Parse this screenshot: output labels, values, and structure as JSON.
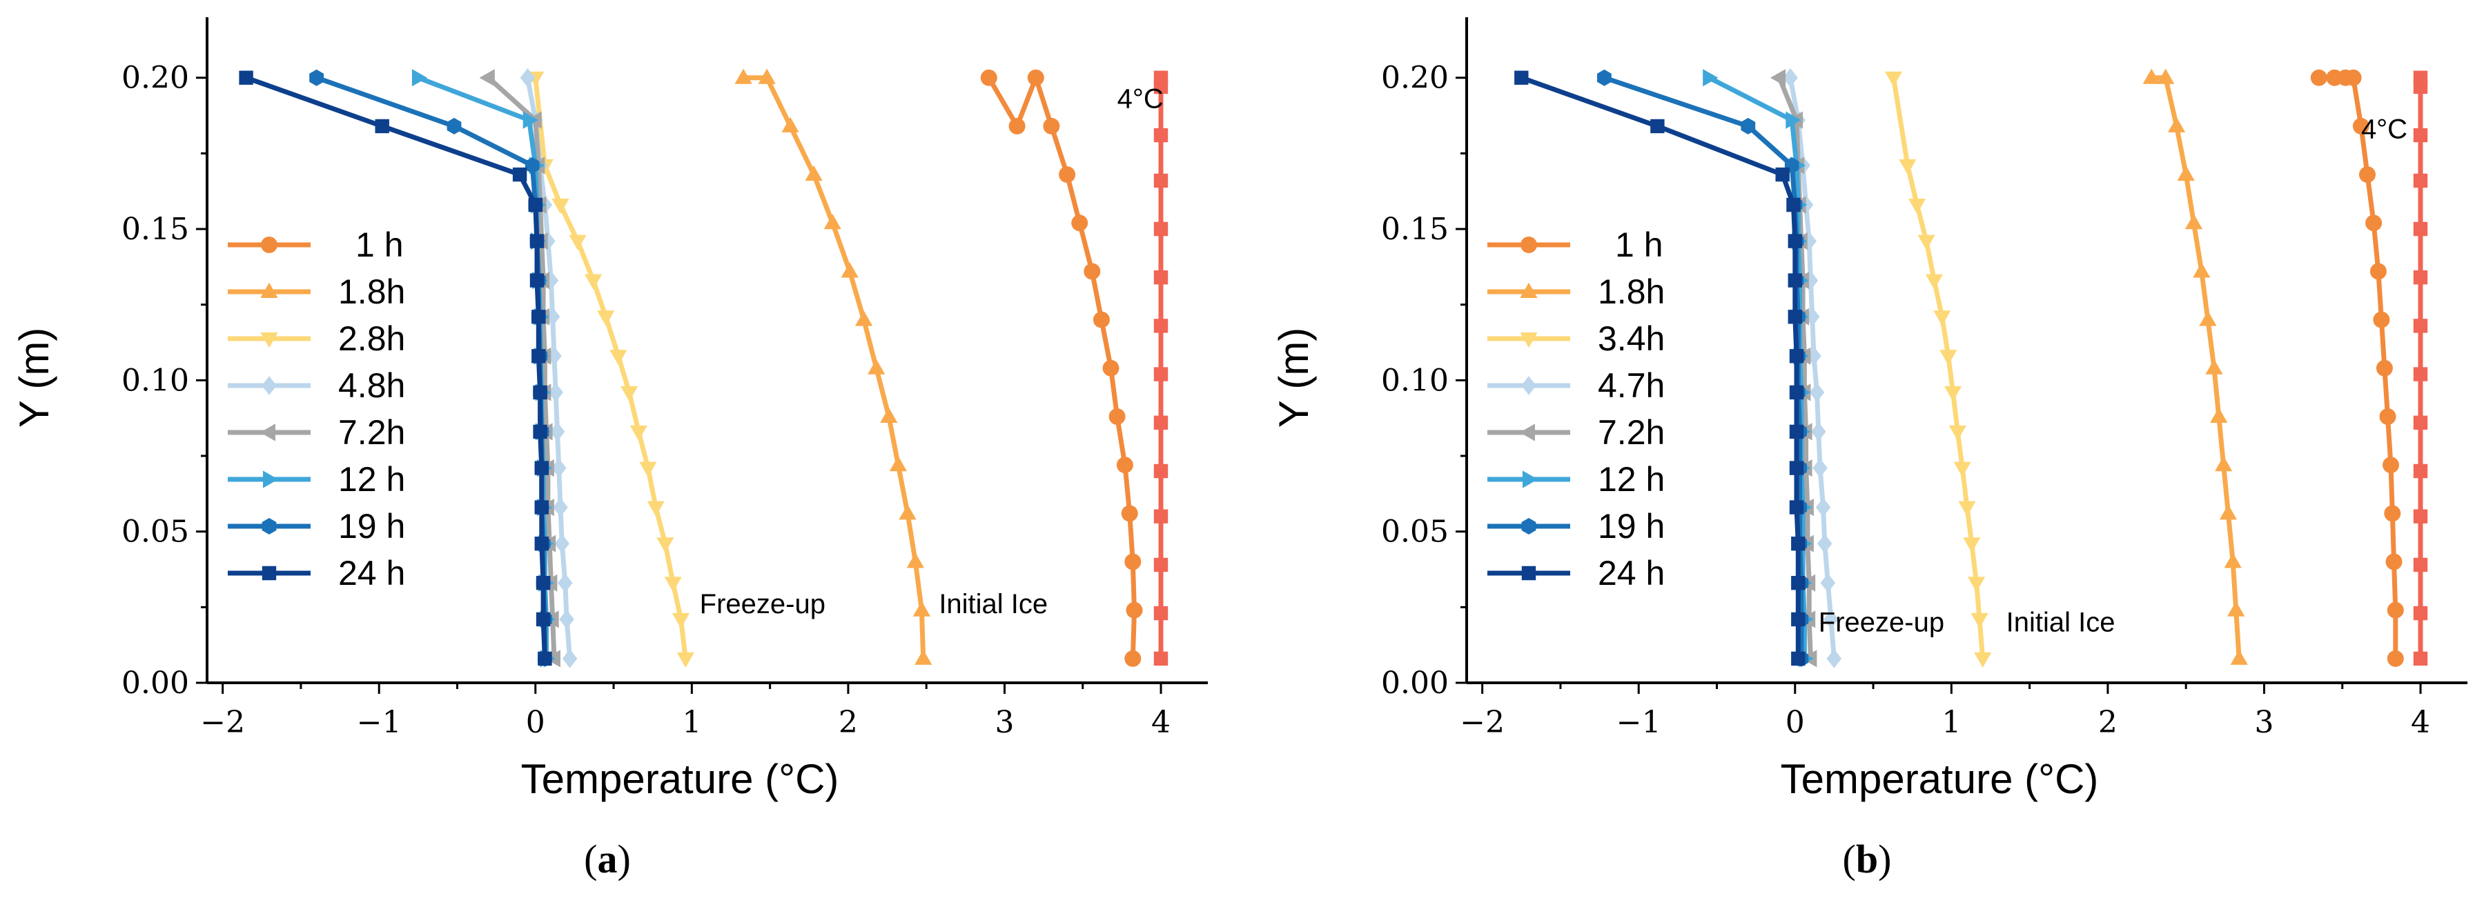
{
  "chart_data": [
    {
      "type": "line",
      "panel_label": {
        "open": "(",
        "letter": "a",
        "close": ")"
      },
      "xlabel": "Temperature (°C)",
      "ylabel": "Y (m)",
      "xlim": [
        -2.1,
        4.3
      ],
      "ylim": [
        0,
        0.22
      ],
      "xticks": [
        -2,
        -1,
        0,
        1,
        2,
        3,
        4
      ],
      "yticks": [
        0.0,
        0.05,
        0.1,
        0.15,
        0.2
      ],
      "xtick_labels": [
        "−2",
        "−1",
        "0",
        "1",
        "2",
        "3",
        "4"
      ],
      "ytick_labels": [
        "0.00",
        "0.05",
        "0.10",
        "0.15",
        "0.20"
      ],
      "legend_position": "center-left",
      "annotations": [
        {
          "text": "4°C",
          "x": 3.72,
          "y": 0.19
        },
        {
          "text": "Freeze-up",
          "x": 1.05,
          "y": 0.023
        },
        {
          "text": "Initial Ice",
          "x": 2.58,
          "y": 0.023
        }
      ],
      "series": [
        {
          "name": "4°C reference",
          "color": "#f16555",
          "marker": "square",
          "in_legend": false,
          "x": [
            4,
            4,
            4,
            4,
            4,
            4,
            4,
            4,
            4,
            4,
            4,
            4,
            4,
            4
          ],
          "y": [
            0.008,
            0.023,
            0.039,
            0.055,
            0.07,
            0.086,
            0.102,
            0.118,
            0.134,
            0.15,
            0.166,
            0.181,
            0.197,
            0.2
          ]
        },
        {
          "name": "1 h",
          "color": "#f28a3c",
          "marker": "circle",
          "in_legend": true,
          "x": [
            3.82,
            3.83,
            3.82,
            3.8,
            3.77,
            3.72,
            3.68,
            3.62,
            3.56,
            3.48,
            3.4,
            3.3,
            3.2,
            3.08,
            2.9
          ],
          "y": [
            0.008,
            0.024,
            0.04,
            0.056,
            0.072,
            0.088,
            0.104,
            0.12,
            0.136,
            0.152,
            0.168,
            0.184,
            0.2,
            0.184,
            0.2
          ]
        },
        {
          "name": "1.8h",
          "color": "#f9a94b",
          "marker": "triangle-up",
          "in_legend": true,
          "x": [
            2.48,
            2.47,
            2.43,
            2.38,
            2.32,
            2.26,
            2.18,
            2.1,
            2.01,
            1.9,
            1.78,
            1.63,
            1.48,
            1.33
          ],
          "y": [
            0.008,
            0.024,
            0.04,
            0.056,
            0.072,
            0.088,
            0.104,
            0.12,
            0.136,
            0.152,
            0.168,
            0.184,
            0.2,
            0.2
          ]
        },
        {
          "name": "2.8h",
          "color": "#fdd877",
          "marker": "triangle-down",
          "in_legend": true,
          "x": [
            0.96,
            0.93,
            0.88,
            0.83,
            0.77,
            0.72,
            0.66,
            0.6,
            0.53,
            0.45,
            0.37,
            0.27,
            0.16,
            0.06,
            0.0
          ],
          "y": [
            0.008,
            0.021,
            0.033,
            0.046,
            0.058,
            0.071,
            0.083,
            0.096,
            0.108,
            0.121,
            0.133,
            0.146,
            0.158,
            0.171,
            0.2
          ]
        },
        {
          "name": "4.8h",
          "color": "#bcd6ec",
          "marker": "diamond",
          "in_legend": true,
          "x": [
            0.22,
            0.2,
            0.19,
            0.17,
            0.16,
            0.15,
            0.14,
            0.13,
            0.12,
            0.11,
            0.1,
            0.08,
            0.06,
            0.03,
            0.0,
            -0.05
          ],
          "y": [
            0.008,
            0.021,
            0.033,
            0.046,
            0.058,
            0.071,
            0.083,
            0.096,
            0.108,
            0.121,
            0.133,
            0.146,
            0.158,
            0.171,
            0.186,
            0.2
          ]
        },
        {
          "name": "7.2h",
          "color": "#a6a6a6",
          "marker": "triangle-left",
          "in_legend": true,
          "x": [
            0.12,
            0.11,
            0.1,
            0.09,
            0.08,
            0.08,
            0.07,
            0.06,
            0.06,
            0.05,
            0.05,
            0.04,
            0.03,
            0.02,
            0.0,
            -0.3
          ],
          "y": [
            0.008,
            0.021,
            0.033,
            0.046,
            0.058,
            0.071,
            0.083,
            0.096,
            0.108,
            0.121,
            0.133,
            0.146,
            0.158,
            0.171,
            0.186,
            0.2
          ]
        },
        {
          "name": "12 h",
          "color": "#3fa6da",
          "marker": "triangle-right",
          "in_legend": true,
          "x": [
            0.07,
            0.07,
            0.06,
            0.06,
            0.05,
            0.05,
            0.04,
            0.04,
            0.03,
            0.03,
            0.02,
            0.01,
            0.01,
            0.0,
            -0.04,
            -0.75
          ],
          "y": [
            0.008,
            0.021,
            0.033,
            0.046,
            0.058,
            0.071,
            0.083,
            0.096,
            0.108,
            0.121,
            0.133,
            0.146,
            0.158,
            0.171,
            0.186,
            0.2
          ]
        },
        {
          "name": "19 h",
          "color": "#1b72b8",
          "marker": "hexagon",
          "in_legend": true,
          "x": [
            0.06,
            0.06,
            0.05,
            0.05,
            0.04,
            0.04,
            0.04,
            0.03,
            0.03,
            0.02,
            0.02,
            0.01,
            0.0,
            -0.02,
            -0.52,
            -1.4
          ],
          "y": [
            0.008,
            0.021,
            0.033,
            0.046,
            0.058,
            0.071,
            0.083,
            0.096,
            0.108,
            0.121,
            0.133,
            0.146,
            0.158,
            0.171,
            0.184,
            0.2
          ]
        },
        {
          "name": "24 h",
          "color": "#0d3f8c",
          "marker": "square",
          "in_legend": true,
          "x": [
            0.06,
            0.05,
            0.05,
            0.04,
            0.04,
            0.04,
            0.03,
            0.03,
            0.02,
            0.02,
            0.01,
            0.01,
            0.0,
            -0.1,
            -0.98,
            -1.85
          ],
          "y": [
            0.008,
            0.021,
            0.033,
            0.046,
            0.058,
            0.071,
            0.083,
            0.096,
            0.108,
            0.121,
            0.133,
            0.146,
            0.158,
            0.168,
            0.184,
            0.2
          ]
        }
      ]
    },
    {
      "type": "line",
      "panel_label": {
        "open": "(",
        "letter": "b",
        "close": ")"
      },
      "xlabel": "Temperature (°C)",
      "ylabel": "Y (m)",
      "xlim": [
        -2.1,
        4.3
      ],
      "ylim": [
        0,
        0.22
      ],
      "xticks": [
        -2,
        -1,
        0,
        1,
        2,
        3,
        4
      ],
      "yticks": [
        0.0,
        0.05,
        0.1,
        0.15,
        0.2
      ],
      "xtick_labels": [
        "−2",
        "−1",
        "0",
        "1",
        "2",
        "3",
        "4"
      ],
      "ytick_labels": [
        "0.00",
        "0.05",
        "0.10",
        "0.15",
        "0.20"
      ],
      "legend_position": "center-left",
      "annotations": [
        {
          "text": "4°C",
          "x": 3.62,
          "y": 0.18
        },
        {
          "text": "Freeze-up",
          "x": 0.15,
          "y": 0.017
        },
        {
          "text": "Initial Ice",
          "x": 1.35,
          "y": 0.017
        }
      ],
      "series": [
        {
          "name": "4°C reference",
          "color": "#f16555",
          "marker": "square",
          "in_legend": false,
          "x": [
            4,
            4,
            4,
            4,
            4,
            4,
            4,
            4,
            4,
            4,
            4,
            4,
            4,
            4
          ],
          "y": [
            0.008,
            0.023,
            0.039,
            0.055,
            0.07,
            0.086,
            0.102,
            0.118,
            0.134,
            0.15,
            0.166,
            0.181,
            0.197,
            0.2
          ]
        },
        {
          "name": "1 h",
          "color": "#f28a3c",
          "marker": "circle",
          "in_legend": true,
          "x": [
            3.84,
            3.84,
            3.83,
            3.82,
            3.81,
            3.79,
            3.77,
            3.75,
            3.73,
            3.7,
            3.66,
            3.62,
            3.57,
            3.52,
            3.45,
            3.35
          ],
          "y": [
            0.008,
            0.024,
            0.04,
            0.056,
            0.072,
            0.088,
            0.104,
            0.12,
            0.136,
            0.152,
            0.168,
            0.184,
            0.2,
            0.2,
            0.2,
            0.2
          ]
        },
        {
          "name": "1.8h",
          "color": "#f9a94b",
          "marker": "triangle-up",
          "in_legend": true,
          "x": [
            2.84,
            2.82,
            2.8,
            2.77,
            2.74,
            2.71,
            2.68,
            2.64,
            2.6,
            2.55,
            2.5,
            2.44,
            2.37,
            2.28
          ],
          "y": [
            0.008,
            0.024,
            0.04,
            0.056,
            0.072,
            0.088,
            0.104,
            0.12,
            0.136,
            0.152,
            0.168,
            0.184,
            0.2,
            0.2
          ]
        },
        {
          "name": "3.4h",
          "color": "#fdd877",
          "marker": "triangle-down",
          "in_legend": true,
          "x": [
            1.2,
            1.18,
            1.16,
            1.13,
            1.1,
            1.07,
            1.04,
            1.01,
            0.98,
            0.94,
            0.89,
            0.84,
            0.78,
            0.72,
            0.63
          ],
          "y": [
            0.008,
            0.021,
            0.033,
            0.046,
            0.058,
            0.071,
            0.083,
            0.096,
            0.108,
            0.121,
            0.133,
            0.146,
            0.158,
            0.171,
            0.2
          ]
        },
        {
          "name": "4.7h",
          "color": "#bcd6ec",
          "marker": "diamond",
          "in_legend": true,
          "x": [
            0.25,
            0.23,
            0.21,
            0.19,
            0.18,
            0.16,
            0.15,
            0.14,
            0.12,
            0.11,
            0.1,
            0.09,
            0.07,
            0.05,
            0.02,
            -0.03
          ],
          "y": [
            0.008,
            0.021,
            0.033,
            0.046,
            0.058,
            0.071,
            0.083,
            0.096,
            0.108,
            0.121,
            0.133,
            0.146,
            0.158,
            0.171,
            0.186,
            0.2
          ]
        },
        {
          "name": "7.2h",
          "color": "#a6a6a6",
          "marker": "triangle-left",
          "in_legend": true,
          "x": [
            0.1,
            0.09,
            0.09,
            0.08,
            0.08,
            0.07,
            0.07,
            0.06,
            0.06,
            0.05,
            0.05,
            0.04,
            0.03,
            0.02,
            0.01,
            -0.1
          ],
          "y": [
            0.008,
            0.021,
            0.033,
            0.046,
            0.058,
            0.071,
            0.083,
            0.096,
            0.108,
            0.121,
            0.133,
            0.146,
            0.158,
            0.171,
            0.186,
            0.2
          ]
        },
        {
          "name": "12 h",
          "color": "#3fa6da",
          "marker": "triangle-right",
          "in_legend": true,
          "x": [
            0.06,
            0.06,
            0.05,
            0.05,
            0.05,
            0.04,
            0.04,
            0.04,
            0.03,
            0.03,
            0.03,
            0.02,
            0.02,
            0.01,
            -0.02,
            -0.55
          ],
          "y": [
            0.008,
            0.021,
            0.033,
            0.046,
            0.058,
            0.071,
            0.083,
            0.096,
            0.108,
            0.121,
            0.133,
            0.146,
            0.158,
            0.171,
            0.186,
            0.2
          ]
        },
        {
          "name": "19 h",
          "color": "#1b72b8",
          "marker": "hexagon",
          "in_legend": true,
          "x": [
            0.04,
            0.04,
            0.04,
            0.03,
            0.03,
            0.03,
            0.03,
            0.02,
            0.02,
            0.02,
            0.01,
            0.01,
            0.0,
            -0.02,
            -0.3,
            -1.22
          ],
          "y": [
            0.008,
            0.021,
            0.033,
            0.046,
            0.058,
            0.071,
            0.083,
            0.096,
            0.108,
            0.121,
            0.133,
            0.146,
            0.158,
            0.171,
            0.184,
            0.2
          ]
        },
        {
          "name": "24 h",
          "color": "#0d3f8c",
          "marker": "square",
          "in_legend": true,
          "x": [
            0.02,
            0.02,
            0.02,
            0.02,
            0.01,
            0.01,
            0.01,
            0.01,
            0.01,
            0.0,
            0.0,
            0.0,
            -0.01,
            -0.08,
            -0.88,
            -1.75
          ],
          "y": [
            0.008,
            0.021,
            0.033,
            0.046,
            0.058,
            0.071,
            0.083,
            0.096,
            0.108,
            0.121,
            0.133,
            0.146,
            0.158,
            0.168,
            0.184,
            0.2
          ]
        }
      ]
    }
  ]
}
